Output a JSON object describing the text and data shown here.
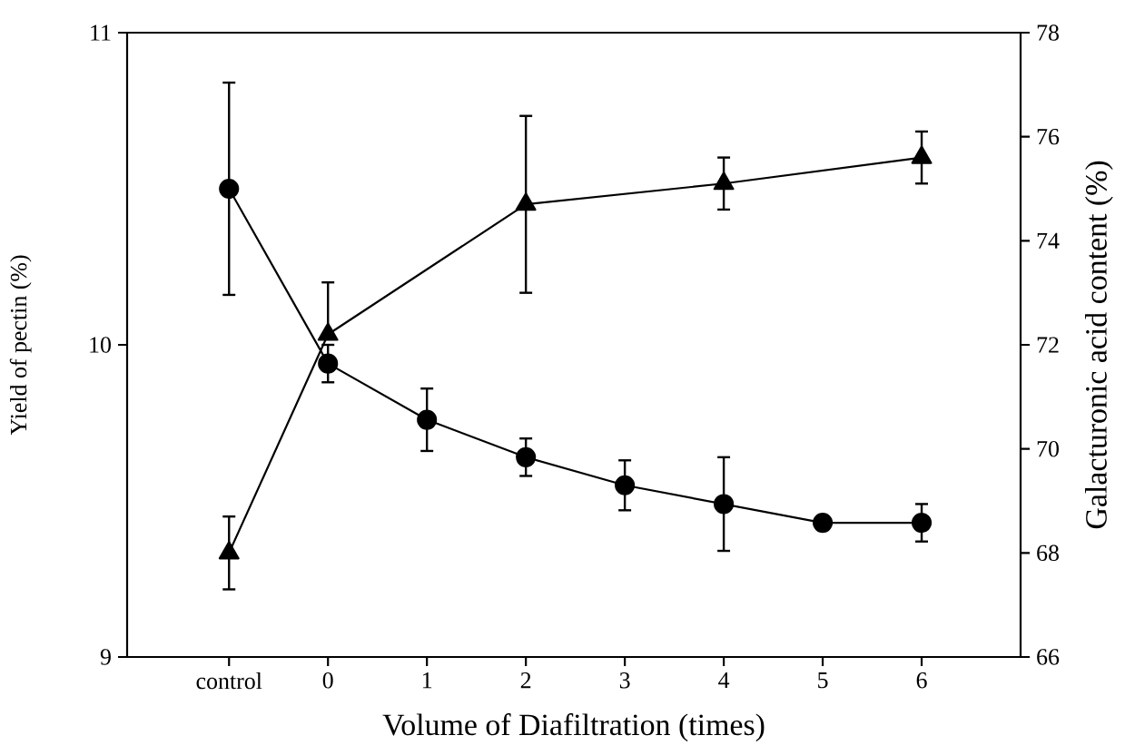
{
  "chart_data": {
    "type": "line",
    "xlabel": "Volume of Diafiltration (times)",
    "ylabel": "Yield of pectin (%)",
    "y2label": "Galacturonic acid content (%)",
    "categories": [
      "control",
      "0",
      "1",
      "2",
      "3",
      "4",
      "5",
      "6"
    ],
    "series": [
      {
        "color": "#000000",
        "marker": "circle",
        "values": [
          10.5,
          9.94,
          9.76,
          9.64,
          9.55,
          9.49,
          9.43,
          9.43
        ],
        "errors": [
          0.34,
          0.06,
          0.1,
          0.06,
          0.08,
          0.15,
          null,
          0.06
        ]
      },
      {
        "color": "#000000",
        "marker": "triangle",
        "axis": "y2",
        "values": [
          68.0,
          72.2,
          null,
          74.7,
          null,
          75.1,
          null,
          75.6
        ],
        "errors": [
          0.7,
          [
            72.2,
            73.2
          ],
          null,
          1.7,
          null,
          0.5,
          null,
          0.5
        ]
      }
    ],
    "ylim": [
      9,
      11
    ],
    "yticks": [
      9,
      10,
      11
    ],
    "y2lim": [
      66,
      78
    ],
    "y2ticks": [
      66,
      68,
      70,
      72,
      74,
      76,
      78
    ],
    "line_style": "solid",
    "grid": false
  }
}
